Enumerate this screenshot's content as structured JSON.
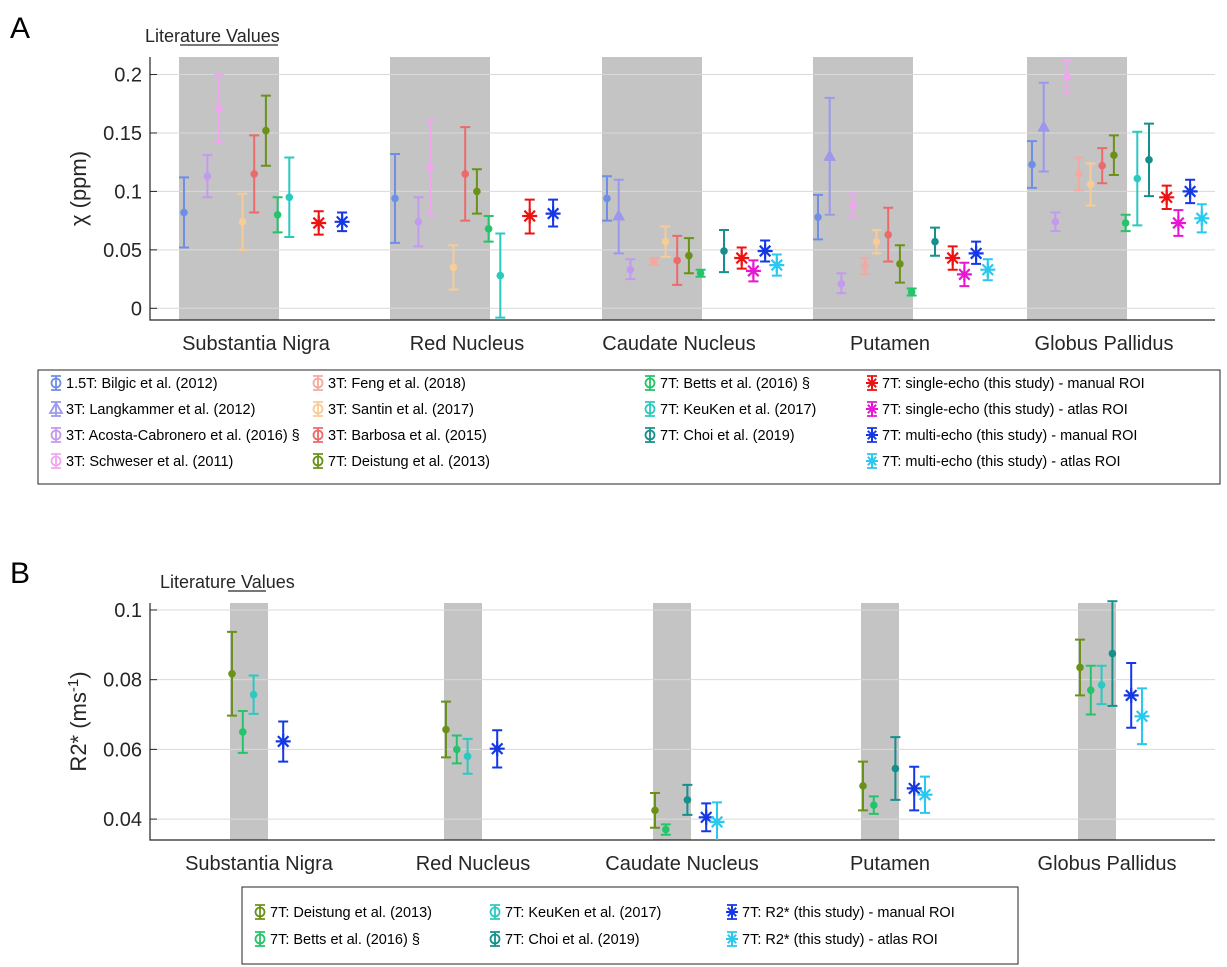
{
  "chart_data": [
    {
      "type": "errorbar",
      "panel_label": "A",
      "annotation": "Literature Values",
      "ylabel": "χ (ppm)",
      "ylim": [
        -0.01,
        0.215
      ],
      "yticks": [
        "0",
        "0.05",
        "0.1",
        "0.15",
        "0.2"
      ],
      "grid": "horizontal",
      "categories": [
        "Substantia Nigra",
        "Red Nucleus",
        "Caudate Nucleus",
        "Putamen",
        "Globus Pallidus"
      ],
      "legend_location": "below",
      "series": [
        {
          "name": "1.5T: Bilgic et al. (2012)",
          "color": "#6f8fe6",
          "marker": "dot",
          "literature": true,
          "values": [
            {
              "mean": 0.082,
              "lo": 0.052,
              "hi": 0.112
            },
            {
              "mean": 0.094,
              "lo": 0.056,
              "hi": 0.132
            },
            {
              "mean": 0.094,
              "lo": 0.075,
              "hi": 0.113
            },
            {
              "mean": 0.078,
              "lo": 0.059,
              "hi": 0.097
            },
            {
              "mean": 0.123,
              "lo": 0.103,
              "hi": 0.143
            }
          ]
        },
        {
          "name": "3T: Langkammer et al. (2012)",
          "color": "#9b98ee",
          "marker": "triangle",
          "literature": true,
          "values": [
            null,
            null,
            {
              "mean": 0.079,
              "lo": 0.047,
              "hi": 0.11
            },
            {
              "mean": 0.13,
              "lo": 0.08,
              "hi": 0.18
            },
            {
              "mean": 0.155,
              "lo": 0.117,
              "hi": 0.193
            }
          ]
        },
        {
          "name": "3T: Acosta-Cabronero et al. (2016) §",
          "color": "#c39af0",
          "marker": "dot",
          "literature": true,
          "values": [
            {
              "mean": 0.113,
              "lo": 0.095,
              "hi": 0.131
            },
            {
              "mean": 0.074,
              "lo": 0.053,
              "hi": 0.095
            },
            {
              "mean": 0.033,
              "lo": 0.025,
              "hi": 0.042
            },
            {
              "mean": 0.021,
              "lo": 0.013,
              "hi": 0.03
            },
            {
              "mean": 0.074,
              "lo": 0.066,
              "hi": 0.082
            }
          ]
        },
        {
          "name": "3T: Schweser et al. (2011)",
          "color": "#f2a6f2",
          "marker": "dot",
          "literature": true,
          "values": [
            {
              "mean": 0.171,
              "lo": 0.142,
              "hi": 0.2
            },
            {
              "mean": 0.12,
              "lo": 0.08,
              "hi": 0.16
            },
            null,
            {
              "mean": 0.088,
              "lo": 0.078,
              "hi": 0.098
            },
            {
              "mean": 0.198,
              "lo": 0.185,
              "hi": 0.212
            }
          ]
        },
        {
          "name": "3T: Feng et al. (2018)",
          "color": "#f4a9a0",
          "marker": "dot",
          "literature": true,
          "values": [
            null,
            null,
            {
              "mean": 0.04,
              "lo": 0.037,
              "hi": 0.043
            },
            {
              "mean": 0.036,
              "lo": 0.029,
              "hi": 0.043
            },
            {
              "mean": 0.115,
              "lo": 0.101,
              "hi": 0.129
            }
          ]
        },
        {
          "name": "3T: Santin et al. (2017)",
          "color": "#f7cc96",
          "marker": "dot",
          "literature": true,
          "values": [
            {
              "mean": 0.074,
              "lo": 0.05,
              "hi": 0.098
            },
            {
              "mean": 0.035,
              "lo": 0.016,
              "hi": 0.054
            },
            {
              "mean": 0.057,
              "lo": 0.044,
              "hi": 0.07
            },
            {
              "mean": 0.057,
              "lo": 0.047,
              "hi": 0.067
            },
            {
              "mean": 0.106,
              "lo": 0.088,
              "hi": 0.124
            }
          ]
        },
        {
          "name": "3T: Barbosa et al. (2015)",
          "color": "#ec6a6a",
          "marker": "dot",
          "literature": true,
          "values": [
            {
              "mean": 0.115,
              "lo": 0.082,
              "hi": 0.148
            },
            {
              "mean": 0.115,
              "lo": 0.075,
              "hi": 0.155
            },
            {
              "mean": 0.041,
              "lo": 0.02,
              "hi": 0.062
            },
            {
              "mean": 0.063,
              "lo": 0.04,
              "hi": 0.086
            },
            {
              "mean": 0.122,
              "lo": 0.107,
              "hi": 0.137
            }
          ]
        },
        {
          "name": "7T: Deistung et al. (2013)",
          "color": "#6a9218",
          "marker": "dot",
          "literature": true,
          "values": [
            {
              "mean": 0.152,
              "lo": 0.122,
              "hi": 0.182
            },
            {
              "mean": 0.1,
              "lo": 0.081,
              "hi": 0.119
            },
            {
              "mean": 0.045,
              "lo": 0.03,
              "hi": 0.06
            },
            {
              "mean": 0.038,
              "lo": 0.022,
              "hi": 0.054
            },
            {
              "mean": 0.131,
              "lo": 0.114,
              "hi": 0.148
            }
          ]
        },
        {
          "name": "7T: Betts et al. (2016) §",
          "color": "#26c46a",
          "marker": "dot",
          "literature": true,
          "values": [
            {
              "mean": 0.08,
              "lo": 0.065,
              "hi": 0.095
            },
            {
              "mean": 0.068,
              "lo": 0.057,
              "hi": 0.079
            },
            {
              "mean": 0.03,
              "lo": 0.027,
              "hi": 0.033
            },
            {
              "mean": 0.014,
              "lo": 0.011,
              "hi": 0.017
            },
            {
              "mean": 0.073,
              "lo": 0.066,
              "hi": 0.08
            }
          ]
        },
        {
          "name": "7T: KeuKen et al. (2017)",
          "color": "#2bc9c0",
          "marker": "dot",
          "literature": true,
          "values": [
            {
              "mean": 0.095,
              "lo": 0.061,
              "hi": 0.129
            },
            {
              "mean": 0.028,
              "lo": -0.008,
              "hi": 0.064
            },
            null,
            null,
            {
              "mean": 0.111,
              "lo": 0.071,
              "hi": 0.151
            }
          ]
        },
        {
          "name": "7T: Choi et al. (2019)",
          "color": "#178f8c",
          "marker": "dot",
          "literature": true,
          "values": [
            null,
            null,
            {
              "mean": 0.049,
              "lo": 0.031,
              "hi": 0.067
            },
            {
              "mean": 0.057,
              "lo": 0.045,
              "hi": 0.069
            },
            {
              "mean": 0.127,
              "lo": 0.096,
              "hi": 0.158
            }
          ]
        },
        {
          "name": "7T: single-echo (this study) - manual ROI",
          "color": "#ee1111",
          "marker": "star",
          "literature": false,
          "values": [
            {
              "mean": 0.073,
              "lo": 0.063,
              "hi": 0.083
            },
            {
              "mean": 0.079,
              "lo": 0.064,
              "hi": 0.093
            },
            {
              "mean": 0.043,
              "lo": 0.034,
              "hi": 0.052
            },
            {
              "mean": 0.043,
              "lo": 0.033,
              "hi": 0.053
            },
            {
              "mean": 0.095,
              "lo": 0.085,
              "hi": 0.105
            }
          ]
        },
        {
          "name": "7T: single-echo (this study) - atlas ROI",
          "color": "#e815d4",
          "marker": "star",
          "literature": false,
          "values": [
            null,
            null,
            {
              "mean": 0.032,
              "lo": 0.023,
              "hi": 0.041
            },
            {
              "mean": 0.029,
              "lo": 0.019,
              "hi": 0.039
            },
            {
              "mean": 0.073,
              "lo": 0.062,
              "hi": 0.084
            }
          ]
        },
        {
          "name": "7T: multi-echo (this study) - manual ROI",
          "color": "#1538e6",
          "marker": "star",
          "literature": false,
          "values": [
            {
              "mean": 0.074,
              "lo": 0.066,
              "hi": 0.082
            },
            {
              "mean": 0.081,
              "lo": 0.07,
              "hi": 0.093
            },
            {
              "mean": 0.049,
              "lo": 0.04,
              "hi": 0.058
            },
            {
              "mean": 0.047,
              "lo": 0.038,
              "hi": 0.057
            },
            {
              "mean": 0.1,
              "lo": 0.09,
              "hi": 0.11
            }
          ]
        },
        {
          "name": "7T: multi-echo (this study) - atlas ROI",
          "color": "#29c8ee",
          "marker": "star",
          "literature": false,
          "values": [
            null,
            null,
            {
              "mean": 0.037,
              "lo": 0.028,
              "hi": 0.046
            },
            {
              "mean": 0.033,
              "lo": 0.024,
              "hi": 0.042
            },
            {
              "mean": 0.077,
              "lo": 0.065,
              "hi": 0.089
            }
          ]
        }
      ]
    },
    {
      "type": "errorbar",
      "panel_label": "B",
      "annotation": "Literature Values",
      "ylabel": "R2* (ms-1)",
      "ylim": [
        0.034,
        0.102
      ],
      "yticks": [
        "0.04",
        "0.06",
        "0.08",
        "0.1"
      ],
      "grid": "horizontal",
      "categories": [
        "Substantia Nigra",
        "Red Nucleus",
        "Caudate Nucleus",
        "Putamen",
        "Globus Pallidus"
      ],
      "legend_location": "below",
      "series": [
        {
          "name": "7T: Deistung et al. (2013)",
          "color": "#6a9218",
          "marker": "dot",
          "literature": true,
          "values": [
            {
              "mean": 0.0817,
              "lo": 0.0697,
              "hi": 0.0937
            },
            {
              "mean": 0.0657,
              "lo": 0.0577,
              "hi": 0.0737
            },
            {
              "mean": 0.0425,
              "lo": 0.0375,
              "hi": 0.0475
            },
            {
              "mean": 0.0495,
              "lo": 0.0425,
              "hi": 0.0565
            },
            {
              "mean": 0.0835,
              "lo": 0.0755,
              "hi": 0.0915
            }
          ]
        },
        {
          "name": "7T: Betts et al. (2016) §",
          "color": "#26c46a",
          "marker": "dot",
          "literature": true,
          "values": [
            {
              "mean": 0.065,
              "lo": 0.059,
              "hi": 0.071
            },
            {
              "mean": 0.06,
              "lo": 0.056,
              "hi": 0.064
            },
            {
              "mean": 0.037,
              "lo": 0.0355,
              "hi": 0.0385
            },
            {
              "mean": 0.044,
              "lo": 0.0415,
              "hi": 0.0465
            },
            {
              "mean": 0.077,
              "lo": 0.07,
              "hi": 0.084
            }
          ]
        },
        {
          "name": "7T: KeuKen et al. (2017)",
          "color": "#2bc9c0",
          "marker": "dot",
          "literature": true,
          "values": [
            {
              "mean": 0.0757,
              "lo": 0.0702,
              "hi": 0.0812
            },
            {
              "mean": 0.058,
              "lo": 0.053,
              "hi": 0.063
            },
            null,
            null,
            {
              "mean": 0.0785,
              "lo": 0.073,
              "hi": 0.084
            }
          ]
        },
        {
          "name": "7T: Choi et al. (2019)",
          "color": "#178f8c",
          "marker": "dot",
          "literature": true,
          "values": [
            null,
            null,
            {
              "mean": 0.0455,
              "lo": 0.0412,
              "hi": 0.0498
            },
            {
              "mean": 0.0545,
              "lo": 0.0455,
              "hi": 0.0635
            },
            {
              "mean": 0.0875,
              "lo": 0.0725,
              "hi": 0.1025
            }
          ]
        },
        {
          "name": "7T: R2* (this study) - manual ROI",
          "color": "#1538e6",
          "marker": "star",
          "literature": false,
          "values": [
            {
              "mean": 0.0623,
              "lo": 0.0565,
              "hi": 0.068
            },
            {
              "mean": 0.0602,
              "lo": 0.0548,
              "hi": 0.0655
            },
            {
              "mean": 0.0405,
              "lo": 0.0365,
              "hi": 0.0445
            },
            {
              "mean": 0.0488,
              "lo": 0.0425,
              "hi": 0.055
            },
            {
              "mean": 0.0755,
              "lo": 0.0662,
              "hi": 0.0848
            }
          ]
        },
        {
          "name": "7T: R2* (this study) - atlas ROI",
          "color": "#29c8ee",
          "marker": "star",
          "literature": false,
          "values": [
            null,
            null,
            {
              "mean": 0.0392,
              "lo": 0.0335,
              "hi": 0.0448
            },
            {
              "mean": 0.047,
              "lo": 0.0418,
              "hi": 0.0522
            },
            {
              "mean": 0.0695,
              "lo": 0.0615,
              "hi": 0.0775
            }
          ]
        }
      ]
    }
  ]
}
